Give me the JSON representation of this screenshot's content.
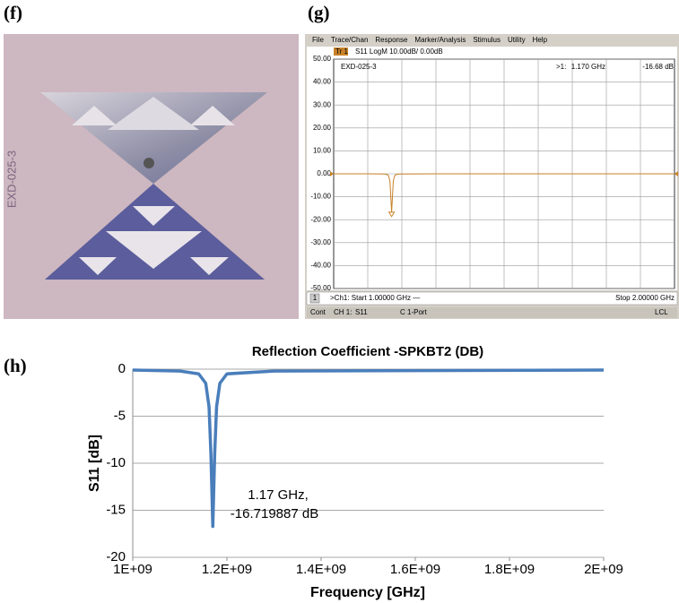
{
  "panels": {
    "f": "(f)",
    "g": "(g)",
    "h": "(h)"
  },
  "photo": {
    "label": "EXD-025-3"
  },
  "vna_window": {
    "menu": [
      "File",
      "Trace/Chan",
      "Response",
      "Marker/Analysis",
      "Stimulus",
      "Utility",
      "Help"
    ],
    "channel_button": "1",
    "status": [
      "Cont",
      "CH 1:",
      "S11",
      "C 1-Port",
      "LCL"
    ]
  },
  "chart_data": [
    {
      "type": "line",
      "trace_label": "Tr 1",
      "title": "S11 LogM 10.00dB/ 0.00dB",
      "subtitle": "EXD-025-3",
      "xlim": [
        1000000000,
        2000000000
      ],
      "ylim": [
        -50,
        50
      ],
      "yticks": [
        {
          "value": 50,
          "label": "50.00"
        },
        {
          "value": 40,
          "label": "40.00"
        },
        {
          "value": 30,
          "label": "30.00"
        },
        {
          "value": 20,
          "label": "20.00"
        },
        {
          "value": 10,
          "label": "10.00"
        },
        {
          "value": 0,
          "label": "0.00"
        },
        {
          "value": -10,
          "label": "-10.00"
        },
        {
          "value": -20,
          "label": "-20.00"
        },
        {
          "value": -30,
          "label": "-30.00"
        },
        {
          "value": -40,
          "label": "-40.00"
        },
        {
          "value": -50,
          "label": "-50.00"
        }
      ],
      "grid": true,
      "x": [
        1000000000,
        1100000000,
        1150000000,
        1160000000,
        1165000000,
        1170000000,
        1175000000,
        1180000000,
        1190000000,
        1300000000,
        2000000000
      ],
      "series": [
        {
          "name": "S11",
          "color": "#c8822a",
          "values": [
            0,
            0,
            -0.1,
            -0.5,
            -3,
            -16.68,
            -3,
            -0.5,
            -0.1,
            0,
            0
          ]
        }
      ],
      "markers": [
        {
          "name": ">1:",
          "x": 1170000000,
          "y": -16.68,
          "x_label": "1.170 GHz",
          "y_label": "-16.68 dB"
        }
      ],
      "start_label": ">Ch1: Start 1.00000 GHz —",
      "stop_label": "Stop 2.00000 GHz"
    },
    {
      "type": "line",
      "title": "Reflection Coefficient -SPKBT2 (DB)",
      "xlabel": "Frequency [GHz]",
      "ylabel": "S11 [dB]",
      "xlim": [
        1000000000,
        2000000000
      ],
      "xticks": [
        {
          "value": 1000000000,
          "label": "1E+09"
        },
        {
          "value": 1200000000,
          "label": "1.2E+09"
        },
        {
          "value": 1400000000,
          "label": "1.4E+09"
        },
        {
          "value": 1600000000,
          "label": "1.6E+09"
        },
        {
          "value": 1800000000,
          "label": "1.8E+09"
        },
        {
          "value": 2000000000,
          "label": "2E+09"
        }
      ],
      "ylim": [
        -20,
        0
      ],
      "yticks": [
        -20,
        -15,
        -10,
        -5,
        0
      ],
      "grid": true,
      "x": [
        1000000000,
        1100000000,
        1140000000,
        1155000000,
        1162000000,
        1166000000,
        1170000000,
        1174000000,
        1178000000,
        1185000000,
        1200000000,
        1300000000,
        2000000000
      ],
      "series": [
        {
          "name": "S11",
          "color": "#4a7ebb",
          "values": [
            -0.1,
            -0.2,
            -0.5,
            -1.5,
            -4,
            -9,
            -16.72,
            -9,
            -4,
            -1.5,
            -0.5,
            -0.2,
            -0.1
          ]
        }
      ],
      "annotation": [
        "1.17 GHz,",
        "-16.719887 dB"
      ]
    }
  ]
}
